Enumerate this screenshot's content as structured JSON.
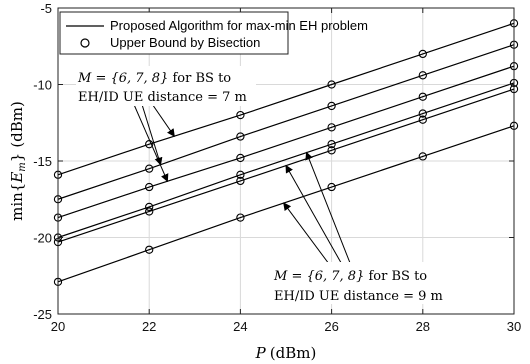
{
  "chart_data": {
    "type": "line",
    "xlabel_var": "P",
    "xlabel_unit": "(dBm)",
    "ylabel_func": "min",
    "ylabel_sym": "E",
    "ylabel_sub": "m",
    "ylabel_unit": "(dBm)",
    "xlim": [
      20,
      30
    ],
    "ylim": [
      -25,
      -5
    ],
    "xticks": [
      "20",
      "22",
      "24",
      "26",
      "28",
      "30"
    ],
    "yticks": [
      "-25",
      "-20",
      "-15",
      "-10",
      "-5"
    ],
    "grid": true,
    "legend_position": "top-left",
    "legend": [
      {
        "label": "Proposed Algorithm for max-min EH problem",
        "marker": "line"
      },
      {
        "label": "Upper Bound by Bisection",
        "marker": "circle"
      }
    ],
    "annotations": [
      {
        "line1_prefix": "M = {6, 7, 8}",
        "line1_suffix": " for BS to",
        "line2": "EH/ID UE distance = 7 m"
      },
      {
        "line1_prefix": "M = {6, 7, 8}",
        "line1_suffix": " for BS to",
        "line2": "EH/ID UE distance = 9 m"
      }
    ],
    "x": [
      20,
      22,
      24,
      26,
      28,
      30
    ],
    "series": [
      {
        "values": [
          -15.9,
          -13.9,
          -12.0,
          -10.0,
          -8.0,
          -6.0
        ]
      },
      {
        "values": [
          -17.5,
          -15.5,
          -13.4,
          -11.4,
          -9.4,
          -7.4
        ]
      },
      {
        "values": [
          -18.7,
          -16.7,
          -14.8,
          -12.8,
          -10.8,
          -8.8
        ]
      },
      {
        "values": [
          -20.0,
          -18.0,
          -15.9,
          -13.9,
          -11.9,
          -9.9
        ]
      },
      {
        "values": [
          -20.3,
          -18.3,
          -16.3,
          -14.3,
          -12.3,
          -10.3
        ]
      },
      {
        "values": [
          -22.9,
          -20.8,
          -18.7,
          -16.7,
          -14.7,
          -12.7
        ]
      }
    ]
  }
}
